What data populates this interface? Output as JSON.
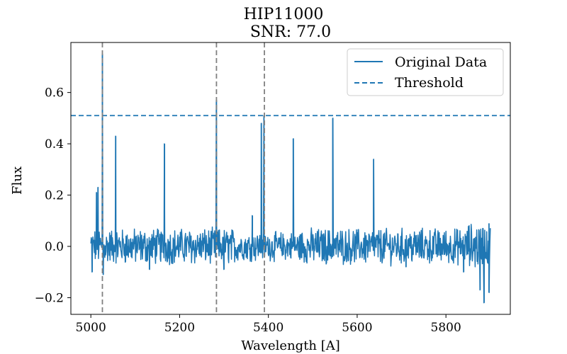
{
  "chart_data": {
    "type": "line",
    "title": "HIP11000",
    "subtitle": "SNR: 77.0",
    "xlabel": "Wavelength [A]",
    "ylabel": "Flux",
    "xlim": [
      4955,
      5945
    ],
    "ylim": [
      -0.265,
      0.795
    ],
    "x_ticks": [
      5000,
      5200,
      5400,
      5600,
      5800
    ],
    "y_ticks": [
      -0.2,
      0.0,
      0.2,
      0.4,
      0.6
    ],
    "x_tick_labels": [
      "5000",
      "5200",
      "5400",
      "5600",
      "5800"
    ],
    "y_tick_labels": [
      "−0.2",
      "0.0",
      "0.2",
      "0.4",
      "0.6"
    ],
    "grid": false,
    "legend_position": "top-right",
    "series": [
      {
        "name": "Original Data",
        "color": "#1f77b4",
        "style": "solid",
        "wavelength_range": [
          5000,
          5900
        ],
        "baseline_flux": 0.0,
        "noise_band": [
          -0.08,
          0.08
        ],
        "peaks": [
          {
            "x": 5013,
            "y": 0.21
          },
          {
            "x": 5016,
            "y": 0.23
          },
          {
            "x": 5026,
            "y": 0.75
          },
          {
            "x": 5056,
            "y": 0.43
          },
          {
            "x": 5166,
            "y": 0.4
          },
          {
            "x": 5283,
            "y": 0.57
          },
          {
            "x": 5364,
            "y": 0.12
          },
          {
            "x": 5384,
            "y": 0.48
          },
          {
            "x": 5390,
            "y": 0.51
          },
          {
            "x": 5456,
            "y": 0.42
          },
          {
            "x": 5545,
            "y": 0.5
          },
          {
            "x": 5637,
            "y": 0.34
          },
          {
            "x": 5883,
            "y": 0.07
          },
          {
            "x": 5897,
            "y": 0.09
          }
        ],
        "dips": [
          {
            "x": 5003,
            "y": -0.1
          },
          {
            "x": 5028,
            "y": -0.11
          },
          {
            "x": 5132,
            "y": -0.09
          },
          {
            "x": 5300,
            "y": -0.09
          },
          {
            "x": 5710,
            "y": -0.08
          },
          {
            "x": 5840,
            "y": -0.1
          },
          {
            "x": 5877,
            "y": -0.17
          },
          {
            "x": 5886,
            "y": -0.22
          },
          {
            "x": 5897,
            "y": -0.18
          }
        ]
      },
      {
        "name": "Threshold",
        "color": "#1f77b4",
        "style": "dashed",
        "y": 0.51
      }
    ],
    "vertical_markers": {
      "color": "#808080",
      "style": "dashed",
      "x": [
        5026,
        5283,
        5391
      ]
    }
  }
}
